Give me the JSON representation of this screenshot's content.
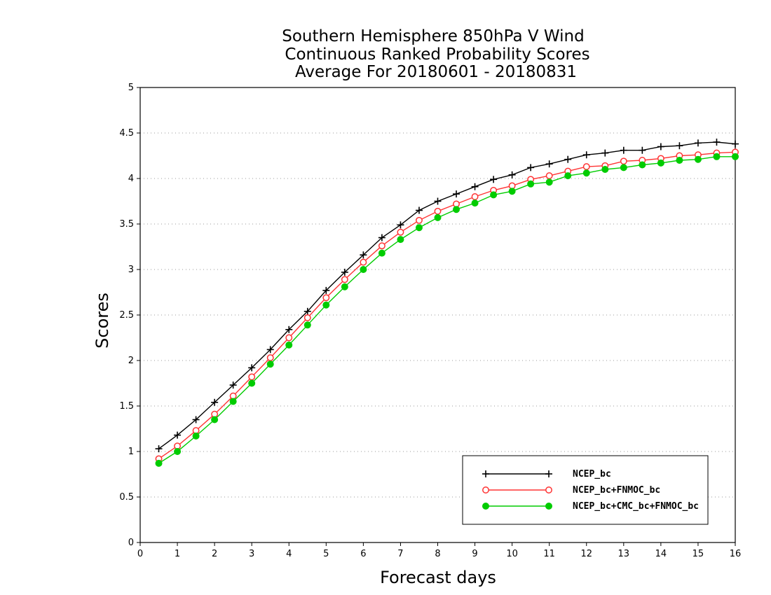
{
  "chart_data": {
    "type": "line",
    "title_lines": [
      "Southern Hemisphere 850hPa V Wind",
      "Continuous Ranked Probability Scores",
      "Average For 20180601 - 20180831"
    ],
    "xlabel": "Forecast days",
    "ylabel": "Scores",
    "xlim": [
      0,
      16
    ],
    "ylim": [
      0,
      5
    ],
    "x_ticks": [
      "0",
      "1",
      "2",
      "3",
      "4",
      "5",
      "6",
      "7",
      "8",
      "9",
      "10",
      "11",
      "12",
      "13",
      "14",
      "15",
      "16"
    ],
    "y_ticks": [
      "0",
      "0.5",
      "1",
      "1.5",
      "2",
      "2.5",
      "3",
      "3.5",
      "4",
      "4.5",
      "5"
    ],
    "grid": "horizontal-dotted",
    "legend_position": "bottom-right",
    "x": [
      0.5,
      1,
      1.5,
      2,
      2.5,
      3,
      3.5,
      4,
      4.5,
      5,
      5.5,
      6,
      6.5,
      7,
      7.5,
      8,
      8.5,
      9,
      9.5,
      10,
      10.5,
      11,
      11.5,
      12,
      12.5,
      13,
      13.5,
      14,
      14.5,
      15,
      15.5,
      16
    ],
    "series": [
      {
        "name": "NCEP_bc",
        "color": "#000000",
        "marker": "plus",
        "values": [
          1.03,
          1.18,
          1.35,
          1.54,
          1.73,
          1.92,
          2.12,
          2.34,
          2.54,
          2.77,
          2.97,
          3.16,
          3.35,
          3.49,
          3.65,
          3.75,
          3.83,
          3.91,
          3.99,
          4.04,
          4.12,
          4.16,
          4.21,
          4.26,
          4.28,
          4.31,
          4.31,
          4.35,
          4.36,
          4.39,
          4.4,
          4.38
        ]
      },
      {
        "name": "NCEP_bc+FNMOC_bc",
        "color": "#ff3333",
        "marker": "open-circle",
        "values": [
          0.92,
          1.06,
          1.23,
          1.41,
          1.61,
          1.82,
          2.03,
          2.25,
          2.47,
          2.69,
          2.89,
          3.08,
          3.26,
          3.41,
          3.54,
          3.64,
          3.72,
          3.8,
          3.87,
          3.92,
          3.99,
          4.03,
          4.08,
          4.13,
          4.14,
          4.19,
          4.2,
          4.22,
          4.25,
          4.26,
          4.28,
          4.29
        ]
      },
      {
        "name": "NCEP_bc+CMC_bc+FNMOC_bc",
        "color": "#00cc00",
        "marker": "filled-circle",
        "values": [
          0.87,
          1.0,
          1.17,
          1.35,
          1.55,
          1.75,
          1.96,
          2.17,
          2.39,
          2.61,
          2.81,
          3.0,
          3.18,
          3.33,
          3.46,
          3.57,
          3.66,
          3.73,
          3.82,
          3.86,
          3.94,
          3.96,
          4.03,
          4.06,
          4.1,
          4.12,
          4.15,
          4.17,
          4.2,
          4.21,
          4.24,
          4.24
        ]
      }
    ]
  }
}
